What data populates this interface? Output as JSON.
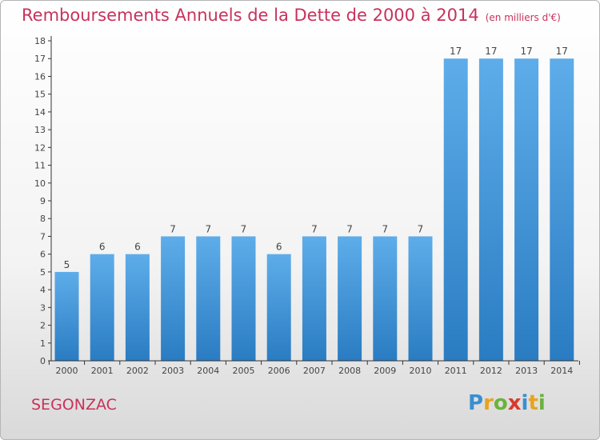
{
  "header": {
    "title": "Remboursements Annuels de la Dette de 2000 à 2014",
    "subtitle": "(en milliers d'€)"
  },
  "footer": {
    "commune": "SEGONZAC",
    "logo_text": "Proxiti",
    "logo_letters": [
      {
        "char": "P",
        "color": "#3a8fd1"
      },
      {
        "char": "r",
        "color": "#e9a320"
      },
      {
        "char": "o",
        "color": "#6cb23c"
      },
      {
        "char": "x",
        "color": "#d83a2e"
      },
      {
        "char": "i",
        "color": "#3a8fd1"
      },
      {
        "char": "t",
        "color": "#e9a320"
      },
      {
        "char": "i",
        "color": "#6cb23c"
      }
    ]
  },
  "colors": {
    "bar_light": "#5eadea",
    "bar_dark": "#2a7cc2",
    "title": "#c8325a",
    "axis": "#333333",
    "text": "#444444"
  },
  "chart_data": {
    "type": "bar",
    "categories": [
      "2000",
      "2001",
      "2002",
      "2003",
      "2004",
      "2005",
      "2006",
      "2007",
      "2008",
      "2009",
      "2010",
      "2011",
      "2012",
      "2013",
      "2014"
    ],
    "values": [
      5,
      6,
      6,
      7,
      7,
      7,
      6,
      7,
      7,
      7,
      7,
      17,
      17,
      17,
      17
    ],
    "ylim": [
      0,
      18
    ],
    "yticks": [
      0,
      1,
      2,
      3,
      4,
      5,
      6,
      7,
      8,
      9,
      10,
      11,
      12,
      13,
      14,
      15,
      16,
      17,
      18
    ],
    "xlabel": "",
    "ylabel": "",
    "grid": false,
    "data_labels": true
  }
}
